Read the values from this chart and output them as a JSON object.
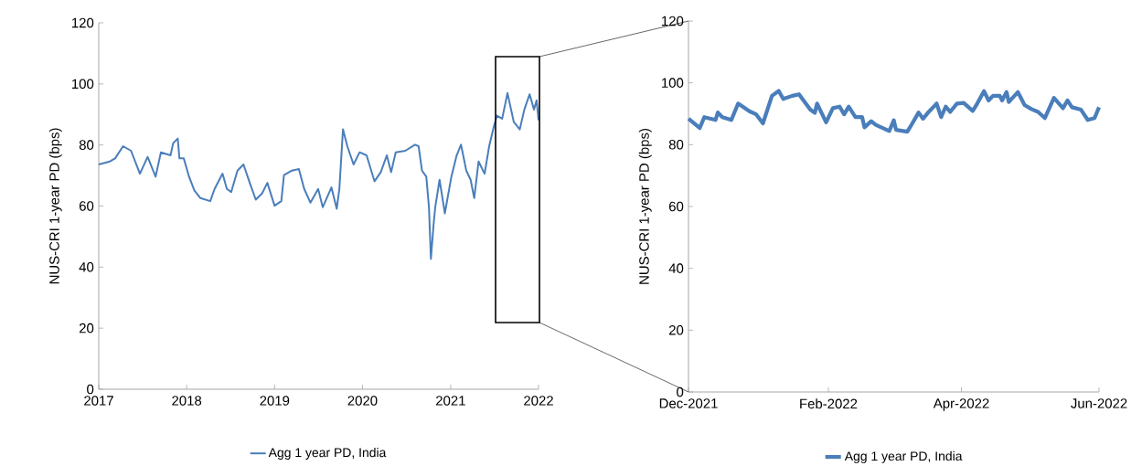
{
  "chart_data": [
    {
      "type": "line",
      "ylabel": "NUS-CRI 1-year PD (bps)",
      "legend": "bottom",
      "xlim": [
        "2017-01-01",
        "2022-01-01"
      ],
      "ylim": [
        0,
        120
      ],
      "yticks": [
        0,
        20,
        40,
        60,
        80,
        100,
        120
      ],
      "xticks": [
        {
          "value": "2017-01-01",
          "label": "2017"
        },
        {
          "value": "2018-01-01",
          "label": "2018"
        },
        {
          "value": "2019-01-01",
          "label": "2019"
        },
        {
          "value": "2020-01-01",
          "label": "2020"
        },
        {
          "value": "2021-01-01",
          "label": "2021"
        },
        {
          "value": "2022-01-01",
          "label": "2022"
        }
      ],
      "x": [
        "2017-01-01",
        "2017-02-16",
        "2017-03-10",
        "2017-04-12",
        "2017-05-15",
        "2017-06-21",
        "2017-07-23",
        "2017-08-25",
        "2017-09-16",
        "2017-10-26",
        "2017-11-06",
        "2017-11-25",
        "2017-12-02",
        "2017-12-20",
        "2018-01-11",
        "2018-02-02",
        "2018-02-27",
        "2018-04-09",
        "2018-04-27",
        "2018-05-30",
        "2018-06-17",
        "2018-07-05",
        "2018-07-31",
        "2018-08-25",
        "2018-09-20",
        "2018-10-15",
        "2018-11-10",
        "2018-12-02",
        "2019-01-01",
        "2019-01-29",
        "2019-02-09",
        "2019-03-14",
        "2019-04-12",
        "2019-05-04",
        "2019-05-30",
        "2019-07-01",
        "2019-07-20",
        "2019-08-25",
        "2019-09-16",
        "2019-09-27",
        "2019-10-12",
        "2019-10-30",
        "2019-11-25",
        "2019-12-20",
        "2020-01-18",
        "2020-02-20",
        "2020-03-17",
        "2020-04-11",
        "2020-04-29",
        "2020-05-18",
        "2020-06-27",
        "2020-08-06",
        "2020-08-21",
        "2020-09-04",
        "2020-09-22",
        "2020-10-03",
        "2020-10-11",
        "2020-10-22",
        "2020-10-29",
        "2020-11-16",
        "2020-12-08",
        "2021-01-04",
        "2021-01-26",
        "2021-02-13",
        "2021-03-07",
        "2021-03-25",
        "2021-04-09",
        "2021-04-27",
        "2021-05-22",
        "2021-06-10",
        "2021-06-28",
        "2021-07-12",
        "2021-08-03",
        "2021-08-25",
        "2021-09-20",
        "2021-10-15",
        "2021-11-03",
        "2021-11-25",
        "2021-12-13",
        "2021-12-24",
        "2022-01-01"
      ],
      "series": [
        {
          "name": "Agg 1 year PD, India",
          "color": "#4a7ebb",
          "values": [
            73.6,
            74.6,
            75.6,
            79.6,
            78.1,
            70.6,
            76.1,
            69.6,
            77.6,
            76.6,
            80.6,
            82.1,
            75.6,
            75.6,
            69.6,
            65.1,
            62.6,
            61.6,
            65.6,
            70.6,
            65.6,
            64.6,
            71.6,
            73.6,
            67.6,
            62.1,
            64.1,
            67.6,
            60.1,
            61.6,
            70.1,
            71.6,
            72.1,
            65.6,
            61.1,
            65.6,
            59.6,
            66.1,
            59.1,
            65.6,
            85.1,
            79.6,
            73.6,
            77.6,
            76.6,
            68.1,
            71.1,
            76.6,
            71.1,
            77.6,
            78.1,
            80.1,
            79.6,
            71.6,
            69.6,
            59.6,
            42.7,
            53.7,
            59.6,
            68.6,
            57.6,
            69.6,
            76.6,
            80.1,
            71.6,
            68.6,
            62.6,
            74.6,
            70.6,
            79.6,
            85.6,
            89.6,
            88.6,
            97.0,
            87.6,
            85.1,
            91.6,
            96.6,
            91.6,
            94.6,
            88.1
          ]
        }
      ]
    },
    {
      "type": "line",
      "ylabel": "NUS-CRI 1-year PD (bps)",
      "legend": "bottom",
      "xlim": [
        "2021-12-01",
        "2022-06-01"
      ],
      "ylim": [
        0,
        120
      ],
      "yticks": [
        0,
        20,
        40,
        60,
        80,
        100,
        120
      ],
      "xticks": [
        {
          "value": "2021-12-01",
          "label": "Dec-2021"
        },
        {
          "value": "2022-02-01",
          "label": "Feb-2022"
        },
        {
          "value": "2022-04-01",
          "label": "Apr-2022"
        },
        {
          "value": "2022-06-01",
          "label": "Jun-2022"
        }
      ],
      "x": [
        "2021-12-01",
        "2021-12-06",
        "2021-12-08",
        "2021-12-13",
        "2021-12-14",
        "2021-12-16",
        "2021-12-20",
        "2021-12-23",
        "2021-12-28",
        "2021-12-31",
        "2022-01-03",
        "2022-01-07",
        "2022-01-10",
        "2022-01-12",
        "2022-01-16",
        "2022-01-19",
        "2022-01-24",
        "2022-01-26",
        "2022-01-27",
        "2022-01-31",
        "2022-02-03",
        "2022-02-06",
        "2022-02-08",
        "2022-02-10",
        "2022-02-13",
        "2022-02-16",
        "2022-02-17",
        "2022-02-20",
        "2022-02-22",
        "2022-02-28",
        "2022-03-02",
        "2022-03-03",
        "2022-03-08",
        "2022-03-10",
        "2022-03-13",
        "2022-03-15",
        "2022-03-17",
        "2022-03-21",
        "2022-03-23",
        "2022-03-25",
        "2022-03-27",
        "2022-03-30",
        "2022-04-02",
        "2022-04-06",
        "2022-04-08",
        "2022-04-11",
        "2022-04-13",
        "2022-04-15",
        "2022-04-18",
        "2022-04-19",
        "2022-04-21",
        "2022-04-22",
        "2022-04-26",
        "2022-04-29",
        "2022-05-02",
        "2022-05-05",
        "2022-05-08",
        "2022-05-12",
        "2022-05-16",
        "2022-05-18",
        "2022-05-20",
        "2022-05-24",
        "2022-05-27",
        "2022-05-30",
        "2022-06-01"
      ],
      "series": [
        {
          "name": "Agg 1 year PD, India",
          "color": "#4a7ebb",
          "values": [
            88.4,
            85.4,
            88.9,
            88.0,
            90.4,
            88.9,
            88.0,
            93.3,
            90.8,
            89.8,
            86.9,
            95.8,
            97.4,
            94.8,
            95.8,
            96.3,
            91.3,
            90.3,
            93.3,
            87.2,
            91.8,
            92.3,
            89.8,
            92.3,
            88.9,
            88.9,
            85.6,
            87.6,
            86.4,
            84.4,
            87.9,
            84.8,
            84.2,
            86.6,
            90.4,
            88.4,
            90.2,
            93.3,
            88.9,
            92.3,
            90.6,
            93.3,
            93.5,
            90.9,
            93.3,
            97.3,
            94.3,
            95.8,
            95.8,
            94.3,
            97.0,
            93.8,
            97.0,
            92.8,
            91.5,
            90.6,
            88.6,
            95.1,
            91.8,
            94.3,
            92.1,
            91.3,
            88.0,
            88.6,
            92.1
          ]
        }
      ]
    }
  ]
}
